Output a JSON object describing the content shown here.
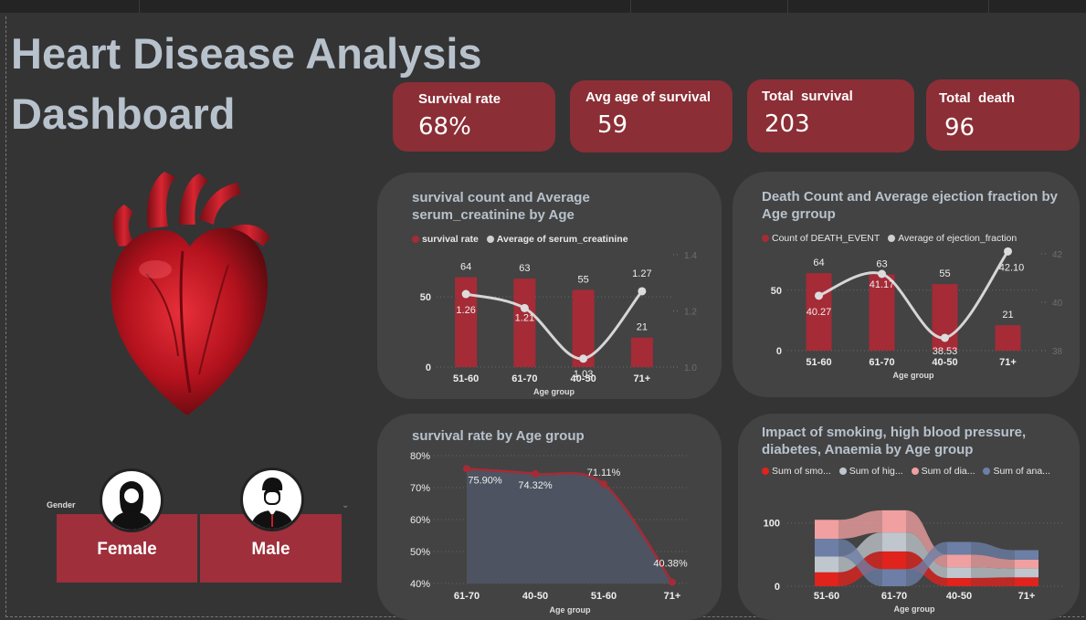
{
  "dashboard": {
    "title_line1": "Heart Disease Analysis",
    "title_line2": "Dashboard"
  },
  "kpis": [
    {
      "label": "Survival rate",
      "value": "68%"
    },
    {
      "label": "Avg age of survival",
      "value": "59"
    },
    {
      "label": "Total  survival",
      "value": "203"
    },
    {
      "label": "Total  death",
      "value": "96"
    }
  ],
  "gender_slicer": {
    "label": "Gender",
    "options": [
      "Female",
      "Male"
    ],
    "chevron": "⌄"
  },
  "colors": {
    "accent": "#a52b36",
    "kpi_bg": "#8b2e36",
    "card_bg": "#434343",
    "line": "#d6d6d6",
    "area": "#4d5360",
    "smoking": "#e0231c",
    "hbp": "#c0c6cd",
    "diabetes": "#f0a0a0",
    "anaemia": "#6d7fa6"
  },
  "chart_data": [
    {
      "type": "bar",
      "title": "survival count and Average serum_creatinine by Age",
      "xlabel": "Age group",
      "categories": [
        "51-60",
        "61-70",
        "40-50",
        "71+"
      ],
      "series": [
        {
          "name": "survival rate",
          "kind": "bar",
          "values": [
            64,
            63,
            55,
            21
          ]
        },
        {
          "name": "Average of serum_creatinine",
          "kind": "line",
          "axis": "secondary",
          "values": [
            1.26,
            1.21,
            1.03,
            1.27
          ]
        }
      ],
      "y_ticks": [
        "0",
        "50"
      ],
      "y2_ticks": [
        "1.0",
        "1.2",
        "1.4"
      ],
      "ylim": [
        0,
        80
      ],
      "y2lim": [
        1.0,
        1.4
      ]
    },
    {
      "type": "bar",
      "title": "Death Count and Average ejection fraction by Age grroup",
      "xlabel": "Age group",
      "categories": [
        "51-60",
        "61-70",
        "40-50",
        "71+"
      ],
      "series": [
        {
          "name": "Count of DEATH_EVENT",
          "kind": "bar",
          "values": [
            64,
            63,
            55,
            21
          ]
        },
        {
          "name": "Average of ejection_fraction",
          "kind": "line",
          "axis": "secondary",
          "values": [
            40.27,
            41.17,
            38.53,
            42.1
          ]
        }
      ],
      "y_ticks": [
        "0",
        "50"
      ],
      "y2_ticks": [
        "38",
        "40",
        "42"
      ],
      "ylim": [
        0,
        80
      ],
      "y2lim": [
        38,
        42
      ]
    },
    {
      "type": "area",
      "title": "survival rate by Age group",
      "xlabel": "Age group",
      "categories": [
        "61-70",
        "40-50",
        "51-60",
        "71+"
      ],
      "values": [
        75.9,
        74.32,
        71.11,
        40.38
      ],
      "labels": [
        "75.90%",
        "74.32%",
        "71.11%",
        "40.38%"
      ],
      "y_ticks": [
        "40%",
        "50%",
        "60%",
        "70%",
        "80%"
      ],
      "ylim": [
        40,
        80
      ]
    },
    {
      "type": "ribbon",
      "title": "Impact of smoking, high blood pressure, diabetes, Anaemia by Age group",
      "xlabel": "Age group",
      "categories": [
        "51-60",
        "61-70",
        "40-50",
        "71+"
      ],
      "legend": [
        "Sum of smo...",
        "Sum of hig...",
        "Sum of dia...",
        "Sum of ana..."
      ],
      "series": [
        {
          "name": "Sum of smoking",
          "values": [
            22,
            28,
            13,
            14
          ]
        },
        {
          "name": "Sum of high blood pressure",
          "values": [
            25,
            30,
            17,
            14
          ]
        },
        {
          "name": "Sum of diabetes",
          "values": [
            30,
            35,
            20,
            14
          ]
        },
        {
          "name": "Sum of anaemia",
          "values": [
            28,
            27,
            20,
            15
          ]
        }
      ],
      "y_ticks": [
        "0",
        "100"
      ],
      "ylim": [
        0,
        140
      ]
    }
  ]
}
